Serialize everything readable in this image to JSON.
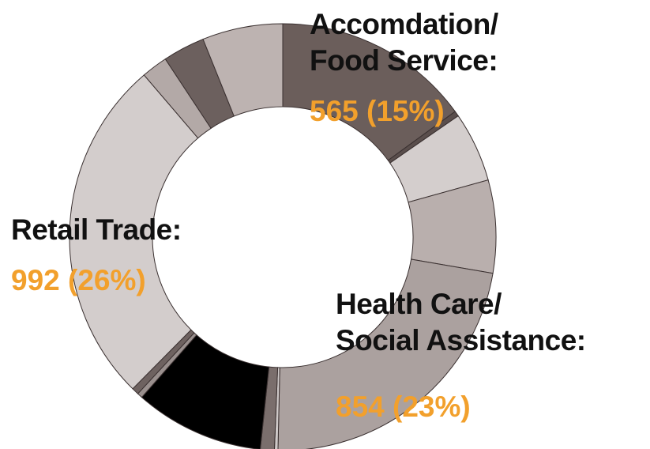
{
  "chart_data": {
    "type": "donut",
    "categories": [
      "Accomdation/\nFood Service:",
      null,
      null,
      null,
      "Health Care/\nSocial Assistance:",
      null,
      null,
      null,
      null,
      null,
      "Retail Trade:",
      null,
      null,
      null
    ],
    "values": [
      565,
      15,
      200,
      265,
      854,
      10,
      40,
      370,
      15,
      20,
      992,
      75,
      120,
      230
    ],
    "value_labels": [
      "565 (15%)",
      null,
      null,
      null,
      "854 (23%)",
      null,
      null,
      null,
      null,
      null,
      "992 (26%)",
      null,
      null,
      null
    ],
    "colors": [
      "#6b5e5b",
      "#5a4e4c",
      "#d4cecd",
      "#b9afad",
      "#aba19f",
      "#cfc9c8",
      "#7a6e6c",
      "#000000",
      "#9a908e",
      "#6e6260",
      "#d3cdcc",
      "#b3a9a7",
      "#6c605e",
      "#bdb3b1"
    ]
  }
}
